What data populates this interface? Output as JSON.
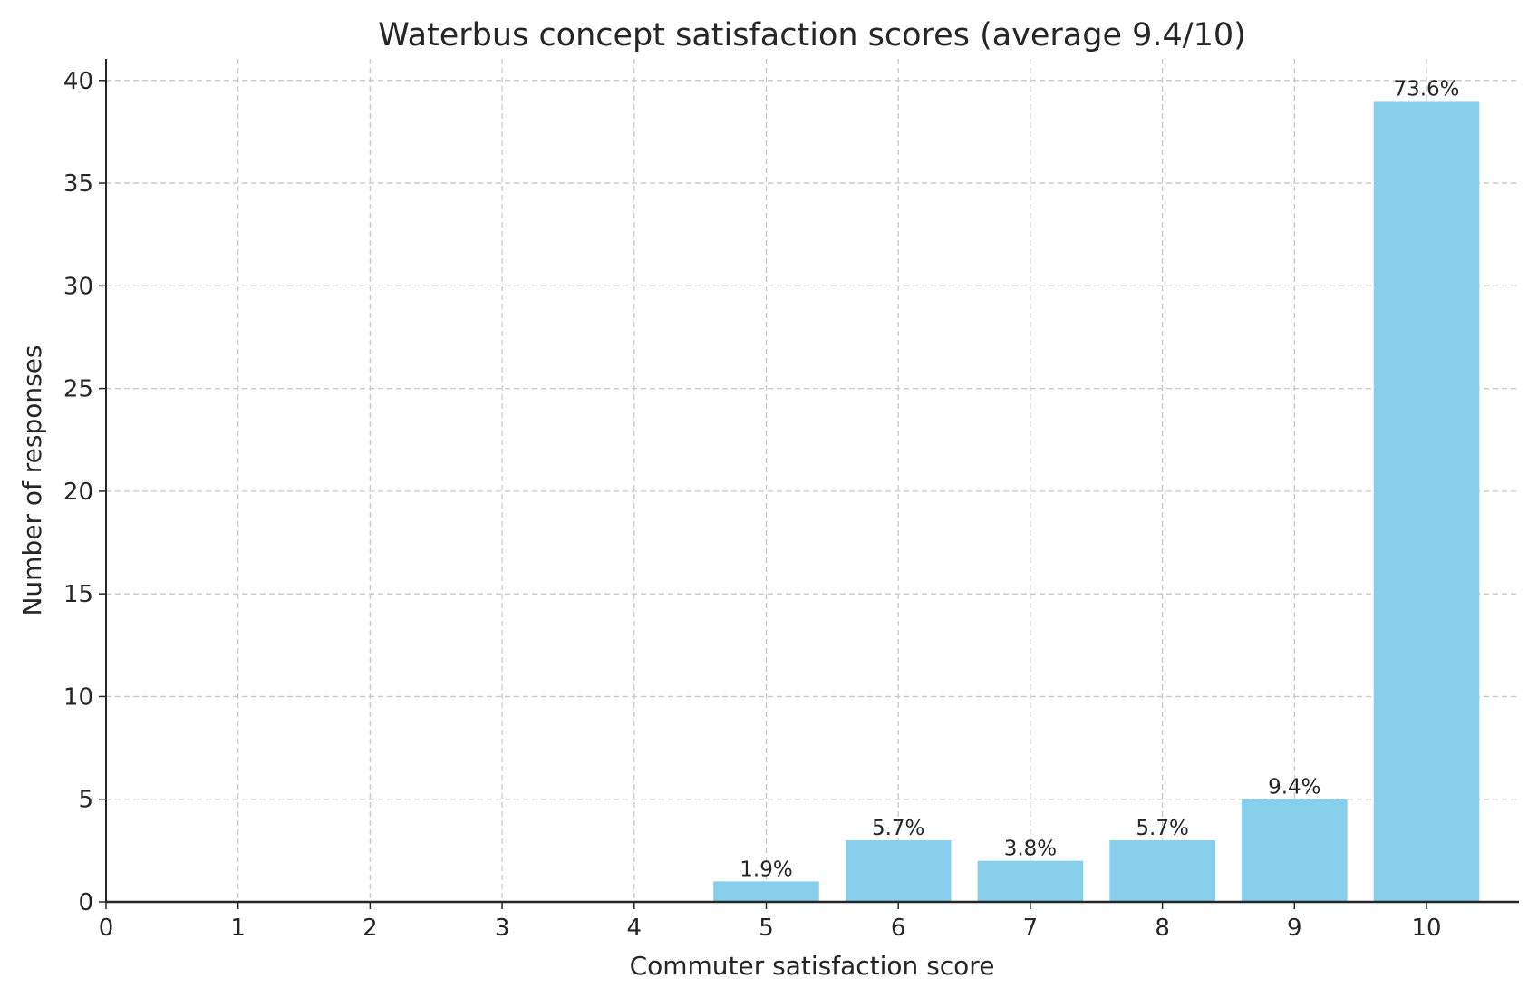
{
  "chart_data": {
    "type": "bar",
    "title": "Waterbus concept satisfaction scores (average 9.4/10)",
    "xlabel": "Commuter satisfaction score",
    "ylabel": "Number of responses",
    "categories": [
      5,
      6,
      7,
      8,
      9,
      10
    ],
    "values": [
      1,
      3,
      2,
      3,
      5,
      39
    ],
    "data_labels": [
      "1.9%",
      "5.7%",
      "3.8%",
      "5.7%",
      "9.4%",
      "73.6%"
    ],
    "xticks": [
      "0",
      "1",
      "2",
      "3",
      "4",
      "5",
      "6",
      "7",
      "8",
      "9",
      "10"
    ],
    "yticks": [
      "0",
      "5",
      "10",
      "15",
      "20",
      "25",
      "30",
      "35",
      "40"
    ],
    "xlim": [
      0,
      10.7
    ],
    "ylim": [
      0,
      41.05
    ],
    "grid": true,
    "bar_color": "#87CEEB"
  }
}
